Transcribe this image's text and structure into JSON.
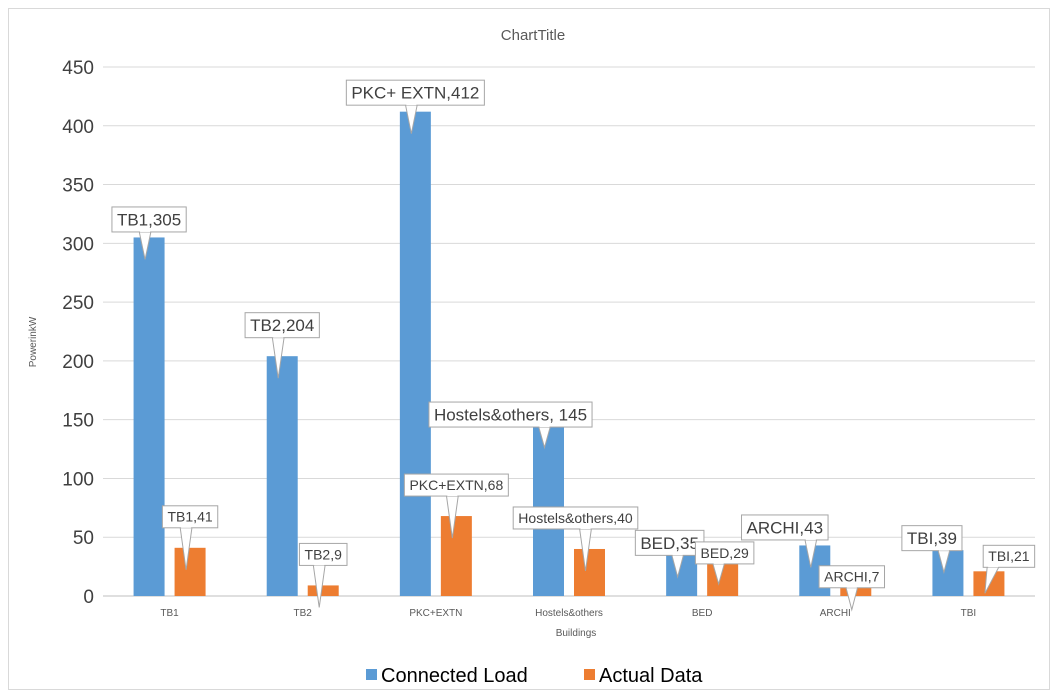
{
  "chart_data": {
    "type": "bar",
    "title": "ChartTitle",
    "xlabel": "Buildings",
    "ylabel": "PowerinkW",
    "ylim": [
      0,
      450
    ],
    "yticks": [
      0,
      50,
      100,
      150,
      200,
      250,
      300,
      350,
      400,
      450
    ],
    "grid": true,
    "legend_position": "bottom",
    "categories": [
      "TB1",
      "TB2",
      "PKC+EXTN",
      "Hostels&others",
      "BED",
      "ARCHI",
      "TBI"
    ],
    "series": [
      {
        "name": "Connected Load",
        "color": "#5b9bd5",
        "values": [
          305,
          204,
          412,
          145,
          35,
          43,
          39
        ],
        "labels": [
          "TB1,305",
          "TB2,204",
          "PKC+ EXTN,412",
          "Hostels&others, 145",
          "BED,35",
          "ARCHI,43",
          "TBI,39"
        ]
      },
      {
        "name": "Actual Data",
        "color": "#ed7d31",
        "values": [
          41,
          9,
          68,
          40,
          29,
          7,
          21
        ],
        "labels": [
          "TB1,41",
          "TB2,9",
          "PKC+EXTN,68",
          "Hostels&others,40",
          "BED,29",
          "ARCHI,7",
          "TBI,21"
        ]
      }
    ]
  }
}
